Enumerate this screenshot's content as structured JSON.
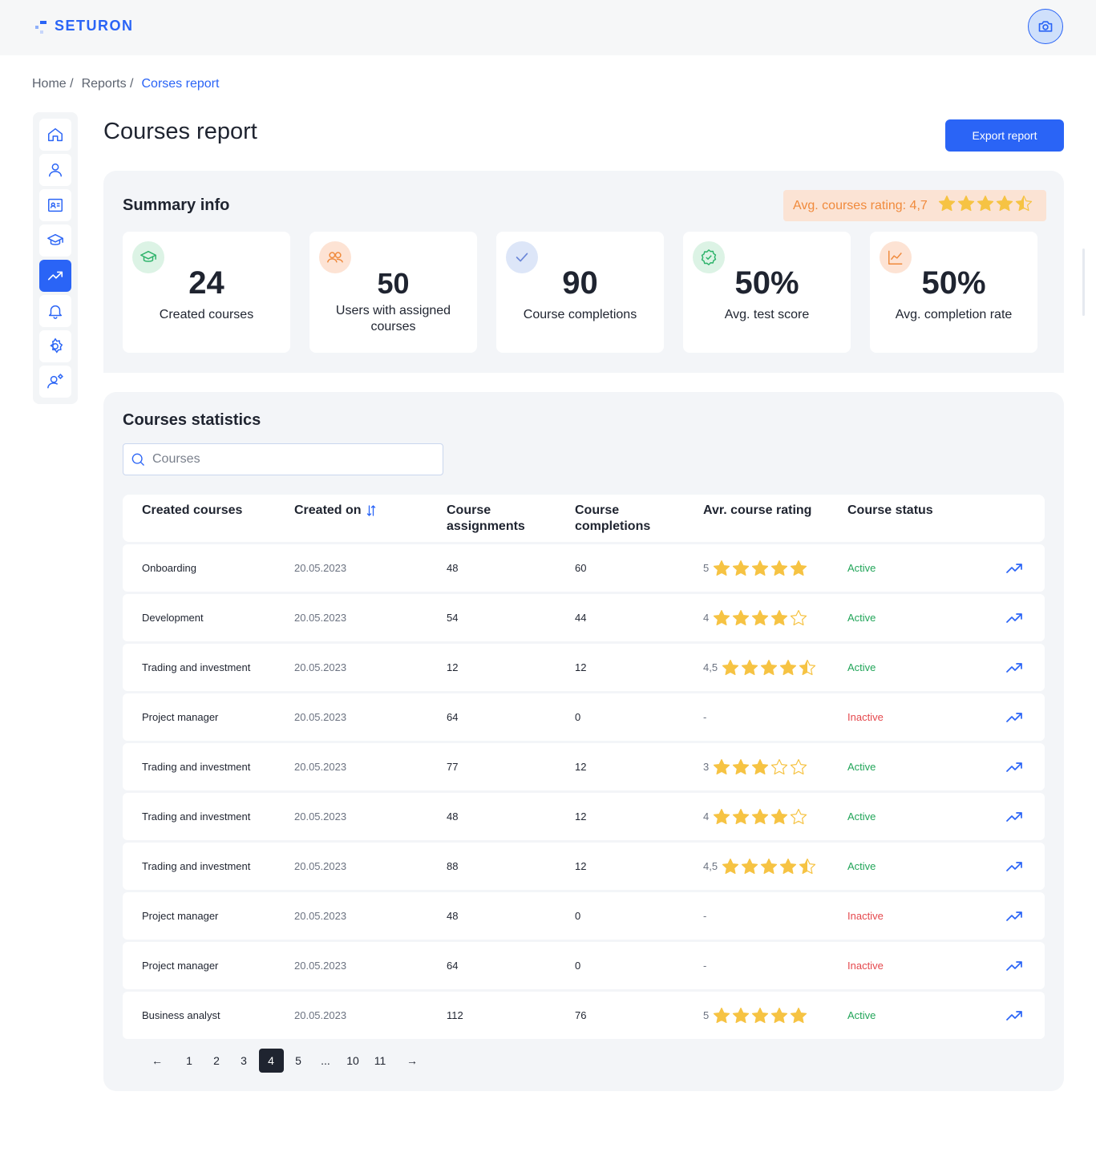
{
  "app": {
    "name": "SETURON"
  },
  "breadcrumb": {
    "home": "Home /",
    "reports": "Reports /",
    "current": "Corses report"
  },
  "sidebar": {
    "items": [
      {
        "name": "home",
        "icon": "home-icon"
      },
      {
        "name": "users",
        "icon": "user-icon"
      },
      {
        "name": "profile-card",
        "icon": "id-card-icon"
      },
      {
        "name": "courses",
        "icon": "graduation-cap-icon"
      },
      {
        "name": "reports",
        "icon": "trend-up-icon",
        "active": true
      },
      {
        "name": "notifications",
        "icon": "bell-icon"
      },
      {
        "name": "settings",
        "icon": "gear-icon"
      },
      {
        "name": "user-settings",
        "icon": "user-gear-icon"
      }
    ]
  },
  "page": {
    "title": "Courses report",
    "export_label": "Export report"
  },
  "summary": {
    "title": "Summary info",
    "rating_label": "Avg. courses rating: 4,7",
    "rating_value": 4.7,
    "cards": [
      {
        "value": "24",
        "label": "Created courses",
        "icon": "graduation-cap-icon",
        "color": "#2db36a"
      },
      {
        "value": "50",
        "label": "Users with assigned courses",
        "icon": "users-icon",
        "color": "#f08a3c"
      },
      {
        "value": "90",
        "label": "Course completions",
        "icon": "check-icon",
        "color": "#6a86d8"
      },
      {
        "value": "50%",
        "label": "Avg. test score",
        "icon": "badge-check-icon",
        "color": "#2db36a"
      },
      {
        "value": "50%",
        "label": "Avg. completion rate",
        "icon": "line-chart-icon",
        "color": "#f08a3c"
      }
    ]
  },
  "stats": {
    "title": "Courses statistics",
    "search_placeholder": "Courses",
    "columns": {
      "name": "Created courses",
      "created": "Created on",
      "assignments": "Course assignments",
      "completions": "Course completions",
      "rating": "Avr. course rating",
      "status": "Course status"
    },
    "rows": [
      {
        "name": "Onboarding",
        "created": "20.05.2023",
        "assignments": "48",
        "completions": "60",
        "rating_label": "5",
        "rating": 5,
        "status": "Active"
      },
      {
        "name": "Development",
        "created": "20.05.2023",
        "assignments": "54",
        "completions": "44",
        "rating_label": "4",
        "rating": 4,
        "status": "Active"
      },
      {
        "name": "Trading and investment",
        "created": "20.05.2023",
        "assignments": "12",
        "completions": "12",
        "rating_label": "4,5",
        "rating": 4.5,
        "status": "Active"
      },
      {
        "name": "Project manager",
        "created": "20.05.2023",
        "assignments": "64",
        "completions": "0",
        "rating_label": "-",
        "rating": null,
        "status": "Inactive"
      },
      {
        "name": "Trading and investment",
        "created": "20.05.2023",
        "assignments": "77",
        "completions": "12",
        "rating_label": "3",
        "rating": 3,
        "status": "Active"
      },
      {
        "name": "Trading and investment",
        "created": "20.05.2023",
        "assignments": "48",
        "completions": "12",
        "rating_label": "4",
        "rating": 4,
        "status": "Active"
      },
      {
        "name": "Trading and investment",
        "created": "20.05.2023",
        "assignments": "88",
        "completions": "12",
        "rating_label": "4,5",
        "rating": 4.5,
        "status": "Active"
      },
      {
        "name": "Project manager",
        "created": "20.05.2023",
        "assignments": "48",
        "completions": "0",
        "rating_label": "-",
        "rating": null,
        "status": "Inactive"
      },
      {
        "name": "Project manager",
        "created": "20.05.2023",
        "assignments": "64",
        "completions": "0",
        "rating_label": "-",
        "rating": null,
        "status": "Inactive"
      },
      {
        "name": "Business analyst",
        "created": "20.05.2023",
        "assignments": "112",
        "completions": "76",
        "rating_label": "5",
        "rating": 5,
        "status": "Active"
      }
    ],
    "pagination": {
      "prev": "←",
      "next": "→",
      "pages": [
        "1",
        "2",
        "3",
        "4",
        "5",
        "...",
        "10",
        "11"
      ],
      "current": "4"
    }
  },
  "colors": {
    "accent": "#2a64f6",
    "star": "#f6c343",
    "active": "#22a559",
    "inactive": "#e5484d",
    "rating_text": "#f08a3c"
  }
}
